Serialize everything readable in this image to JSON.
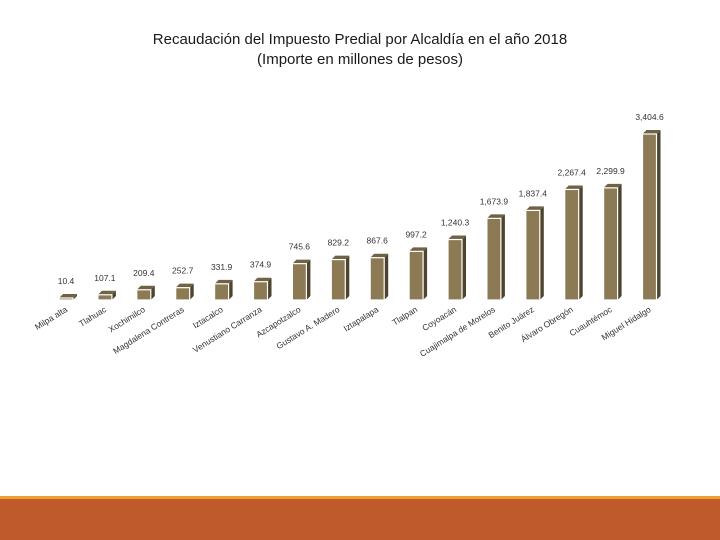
{
  "chart_data": {
    "type": "bar",
    "title": "Recaudación del Impuesto Predial por Alcaldía en el año 2018",
    "subtitle": "(Importe en millones de pesos)",
    "xlabel": "",
    "ylabel": "",
    "ylim": [
      0,
      3404.6
    ],
    "grid": false,
    "legend": "none",
    "bar_color": "#8c7a55",
    "categories": [
      "Milpa alta",
      "Tlahuac",
      "Xochimilco",
      "Magdalena Contreras",
      "Iztacalco",
      "Venustiano Carranza",
      "Azcapotzalco",
      "Gustavo A. Madero",
      "Iztapalapa",
      "Tlalpan",
      "Coyoacán",
      "Cuajimalpa de Morelos",
      "Benito Juárez",
      "Álvaro Obregón",
      "Cuauhtémoc",
      "Miguel Hidalgo"
    ],
    "values": [
      10.4,
      107.1,
      209.4,
      252.7,
      331.9,
      374.9,
      745.6,
      829.2,
      867.6,
      997.2,
      1240.3,
      1673.9,
      1837.4,
      2267.4,
      2299.9,
      3404.6
    ],
    "labels": [
      "10.4",
      "107.1",
      "209.4",
      "252.7",
      "331.9",
      "374.9",
      "745.6",
      "829.2",
      "867.6",
      "997.2",
      "1,240.3",
      "1,673.9",
      "1,837.4",
      "2,267.4",
      "2,299.9",
      "3,404.6"
    ]
  }
}
